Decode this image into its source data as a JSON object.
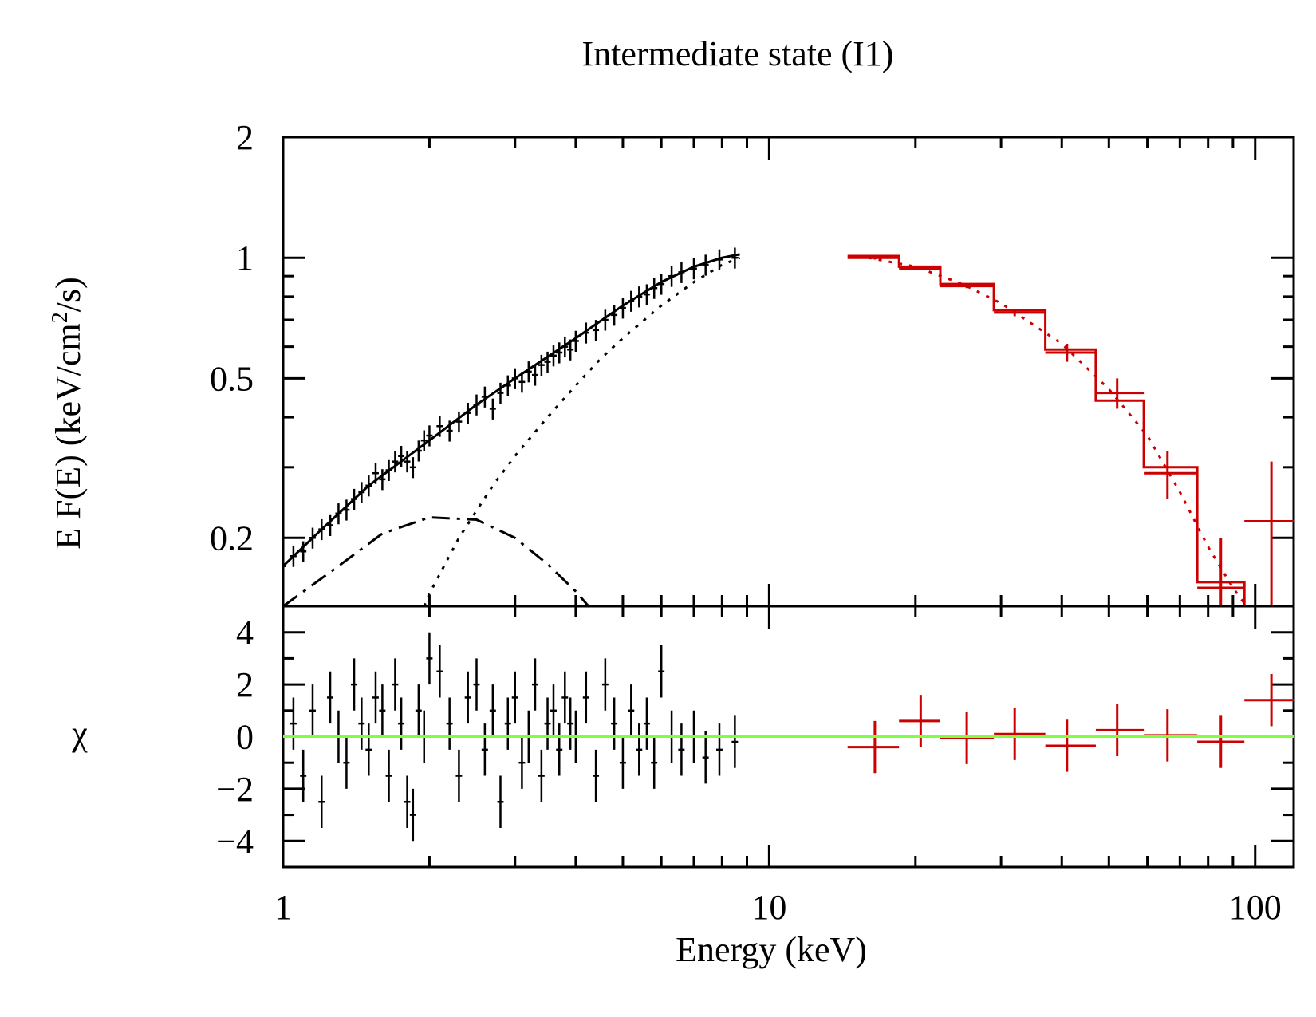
{
  "chart_data": {
    "type": "scatter",
    "title": "Intermediate state (I1)",
    "xlabel": "Energy (keV)",
    "xscale": "log",
    "xlim": [
      1,
      120
    ],
    "x_ticks": [
      {
        "v": 1,
        "label": "1"
      },
      {
        "v": 10,
        "label": "10"
      },
      {
        "v": 100,
        "label": "100"
      }
    ],
    "top_panel": {
      "ylabel_main": "E F(E) (keV/cm",
      "ylabel_sup": "2",
      "ylabel_tail": "/s)",
      "yscale": "log",
      "ylim": [
        0.135,
        2.0
      ],
      "y_ticks": [
        {
          "v": 0.2,
          "label": "0.2"
        },
        {
          "v": 0.5,
          "label": "0.5"
        },
        {
          "v": 1,
          "label": "1"
        },
        {
          "v": 2,
          "label": "2"
        }
      ]
    },
    "bottom_panel": {
      "ylabel": "χ",
      "ylim": [
        -5.0,
        5.0
      ],
      "y_ticks": [
        {
          "v": -4,
          "label": "−4"
        },
        {
          "v": -2,
          "label": "−2"
        },
        {
          "v": 0,
          "label": "0"
        },
        {
          "v": 2,
          "label": "2"
        },
        {
          "v": 4,
          "label": "4"
        }
      ]
    },
    "colors": {
      "soft_data": "#000000",
      "hard_data": "#cc0000",
      "zero_line": "#80ff40",
      "axes": "#000000"
    },
    "soft_model": {
      "description_name": "total model",
      "x": [
        1.0,
        1.2,
        1.5,
        2.0,
        2.5,
        3.0,
        4.0,
        5.0,
        6.0,
        7.0,
        8.0,
        8.7
      ],
      "y": [
        0.17,
        0.21,
        0.27,
        0.35,
        0.43,
        0.5,
        0.63,
        0.76,
        0.87,
        0.95,
        1.0,
        1.02
      ]
    },
    "disk_component": {
      "style": "dash-dot",
      "x": [
        1.0,
        1.3,
        1.6,
        2.0,
        2.5,
        3.0,
        3.5,
        4.0,
        4.25
      ],
      "y": [
        0.135,
        0.17,
        0.205,
        0.225,
        0.222,
        0.2,
        0.172,
        0.147,
        0.135
      ]
    },
    "comptonized_component": {
      "style": "dotted",
      "x": [
        1.95,
        2.0,
        2.3,
        2.7,
        3.0,
        3.5,
        4.0,
        4.5,
        5.0,
        6.0,
        7.0,
        8.0,
        8.7
      ],
      "y": [
        0.135,
        0.145,
        0.2,
        0.27,
        0.32,
        0.4,
        0.48,
        0.56,
        0.63,
        0.76,
        0.87,
        0.96,
        1.0
      ]
    },
    "soft_data": {
      "x": [
        1.0,
        1.05,
        1.1,
        1.15,
        1.2,
        1.25,
        1.3,
        1.35,
        1.4,
        1.45,
        1.5,
        1.55,
        1.6,
        1.65,
        1.7,
        1.75,
        1.8,
        1.85,
        1.9,
        1.95,
        2.0,
        2.1,
        2.2,
        2.3,
        2.4,
        2.5,
        2.6,
        2.7,
        2.8,
        2.9,
        3.0,
        3.1,
        3.2,
        3.3,
        3.4,
        3.5,
        3.6,
        3.7,
        3.8,
        3.9,
        4.0,
        4.2,
        4.4,
        4.6,
        4.8,
        5.0,
        5.2,
        5.4,
        5.6,
        5.8,
        6.0,
        6.3,
        6.6,
        7.0,
        7.4,
        7.9,
        8.5
      ],
      "y": [
        0.17,
        0.18,
        0.185,
        0.2,
        0.21,
        0.215,
        0.23,
        0.235,
        0.25,
        0.26,
        0.27,
        0.29,
        0.28,
        0.295,
        0.31,
        0.32,
        0.31,
        0.3,
        0.33,
        0.35,
        0.36,
        0.38,
        0.37,
        0.39,
        0.41,
        0.43,
        0.45,
        0.42,
        0.46,
        0.48,
        0.5,
        0.49,
        0.52,
        0.51,
        0.54,
        0.55,
        0.57,
        0.58,
        0.6,
        0.59,
        0.62,
        0.65,
        0.66,
        0.7,
        0.72,
        0.75,
        0.78,
        0.8,
        0.81,
        0.84,
        0.86,
        0.9,
        0.92,
        0.94,
        0.96,
        0.99,
        1.0
      ],
      "err": 0.06,
      "chi": [
        2.0,
        0.5,
        -1.5,
        1.0,
        -2.5,
        1.5,
        0.0,
        -1.0,
        2.0,
        0.5,
        -0.5,
        1.5,
        1.0,
        -1.5,
        2.0,
        0.5,
        -2.5,
        -3.0,
        1.0,
        0.0,
        3.0,
        2.5,
        0.5,
        -1.5,
        1.5,
        2.0,
        -0.5,
        1.0,
        -2.5,
        0.5,
        1.5,
        -1.0,
        0.0,
        2.0,
        -1.5,
        0.5,
        1.0,
        -0.5,
        1.5,
        0.5,
        0.0,
        1.5,
        -1.5,
        2.0,
        0.5,
        -1.0,
        1.0,
        -0.5,
        0.5,
        -1.0,
        2.5,
        0.0,
        -0.5,
        0.0,
        -0.8,
        -0.5,
        -0.2
      ],
      "chi_err": 1.0
    },
    "hard_data": {
      "x": [
        16.5,
        20.5,
        25.5,
        32.0,
        41.0,
        52.0,
        66.0,
        85.0,
        108.0
      ],
      "x_lo": [
        14.5,
        18.5,
        22.5,
        29.0,
        37.0,
        47.0,
        59.0,
        76.0,
        95.0
      ],
      "x_hi": [
        18.5,
        22.5,
        29.0,
        37.0,
        47.0,
        59.0,
        76.0,
        95.0,
        122.0
      ],
      "y": [
        1.0,
        0.94,
        0.85,
        0.73,
        0.58,
        0.46,
        0.29,
        0.15,
        0.22
      ],
      "y_err": [
        0.01,
        0.01,
        0.01,
        0.015,
        0.03,
        0.04,
        0.04,
        0.05,
        0.09
      ],
      "model_steps": [
        1.01,
        0.95,
        0.86,
        0.74,
        0.59,
        0.44,
        0.3,
        0.155,
        0.135
      ],
      "chi": [
        -0.4,
        0.6,
        -0.05,
        0.1,
        -0.35,
        0.25,
        0.05,
        -0.2,
        1.4
      ],
      "chi_err": 1.0
    },
    "hard_model_dotted": {
      "x": [
        16.0,
        20.0,
        25.0,
        30.0,
        40.0,
        50.0,
        60.0,
        70.0,
        80.0,
        90.0,
        96.0
      ],
      "y": [
        1.0,
        0.95,
        0.86,
        0.77,
        0.61,
        0.47,
        0.36,
        0.26,
        0.19,
        0.15,
        0.135
      ]
    }
  }
}
